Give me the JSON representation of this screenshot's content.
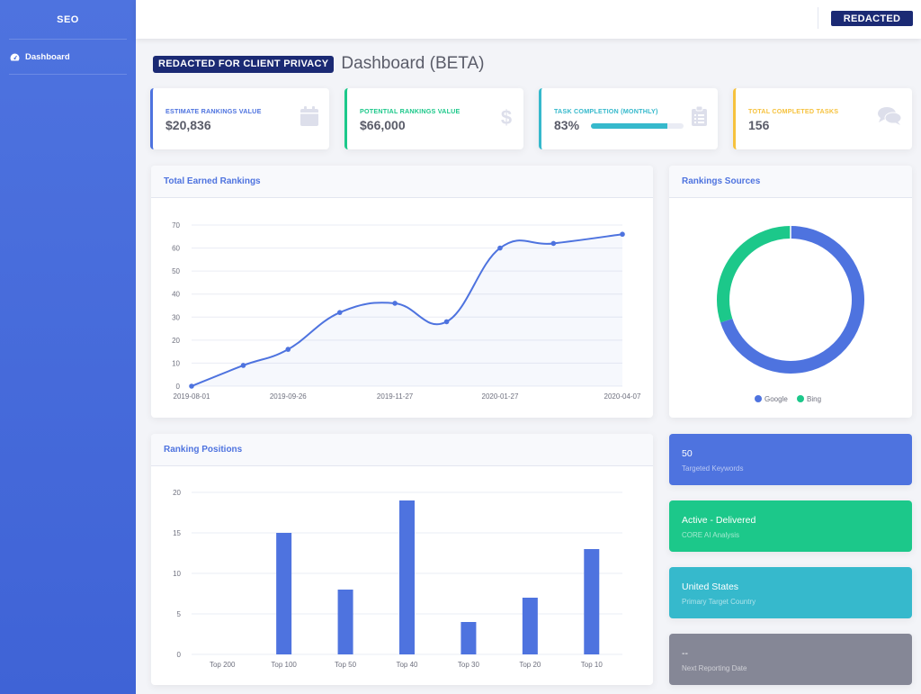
{
  "sidebar": {
    "brand": "SEO",
    "items": [
      {
        "label": "Dashboard",
        "icon": "tachometer-icon"
      }
    ]
  },
  "topbar": {
    "badge": "REDACTED"
  },
  "heading": {
    "badge": "REDACTED FOR CLIENT PRIVACY",
    "title": "Dashboard (BETA)"
  },
  "stats": [
    {
      "label": "ESTIMATE RANKINGS VALUE",
      "value": "$20,836",
      "color": "#4e73df",
      "icon": "calendar-icon"
    },
    {
      "label": "POTENTIAL RANKINGS VALUE",
      "value": "$66,000",
      "color": "#1cc88a",
      "icon": "dollar-icon"
    },
    {
      "label": "TASK COMPLETION (MONTHLY)",
      "value": "83%",
      "progress": 0.83,
      "color": "#36b9cc",
      "icon": "clipboard-icon"
    },
    {
      "label": "TOTAL COMPLETED TASKS",
      "value": "156",
      "color": "#f6c23e",
      "icon": "comments-icon"
    }
  ],
  "panels": {
    "earned": {
      "title": "Total Earned Rankings"
    },
    "sources": {
      "title": "Rankings Sources"
    },
    "positions": {
      "title": "Ranking Positions"
    }
  },
  "chart_data": [
    {
      "type": "line",
      "title": "Total Earned Rankings",
      "x": [
        "2019-08-01",
        "2019-08-31",
        "2019-09-26",
        "2019-10-26",
        "2019-11-27",
        "2019-12-27",
        "2020-01-27",
        "2020-02-27",
        "2020-04-07"
      ],
      "x_tick_labels": [
        "2019-08-01",
        "2019-09-26",
        "2019-11-27",
        "2020-01-27",
        "2020-04-07"
      ],
      "values": [
        0,
        9,
        16,
        32,
        36,
        28,
        60,
        62,
        66
      ],
      "ylim": [
        0,
        70
      ],
      "yticks": [
        0,
        10,
        20,
        30,
        40,
        50,
        60,
        70
      ],
      "color": "#4e73df",
      "grid": true
    },
    {
      "type": "pie",
      "title": "Rankings Sources",
      "categories": [
        "Google",
        "Bing"
      ],
      "values": [
        70,
        30
      ],
      "colors": [
        "#4e73df",
        "#1cc88a"
      ],
      "legend": "bottom"
    },
    {
      "type": "bar",
      "title": "Ranking Positions",
      "categories": [
        "Top 200",
        "Top 100",
        "Top 50",
        "Top 40",
        "Top 30",
        "Top 20",
        "Top 10"
      ],
      "values": [
        0,
        15,
        8,
        19,
        4,
        7,
        13
      ],
      "ylim": [
        0,
        20
      ],
      "yticks": [
        0,
        5,
        10,
        15,
        20
      ],
      "color": "#4e73df",
      "grid": true
    }
  ],
  "info_cards": [
    {
      "big": "50",
      "small": "Targeted Keywords",
      "color": "#4e73df"
    },
    {
      "big": "Active - Delivered",
      "small": "CORE AI Analysis",
      "color": "#1cc88a"
    },
    {
      "big": "United States",
      "small": "Primary Target Country",
      "color": "#36b9cc"
    },
    {
      "big": "--",
      "small": "Next Reporting Date",
      "color": "#858796"
    }
  ]
}
